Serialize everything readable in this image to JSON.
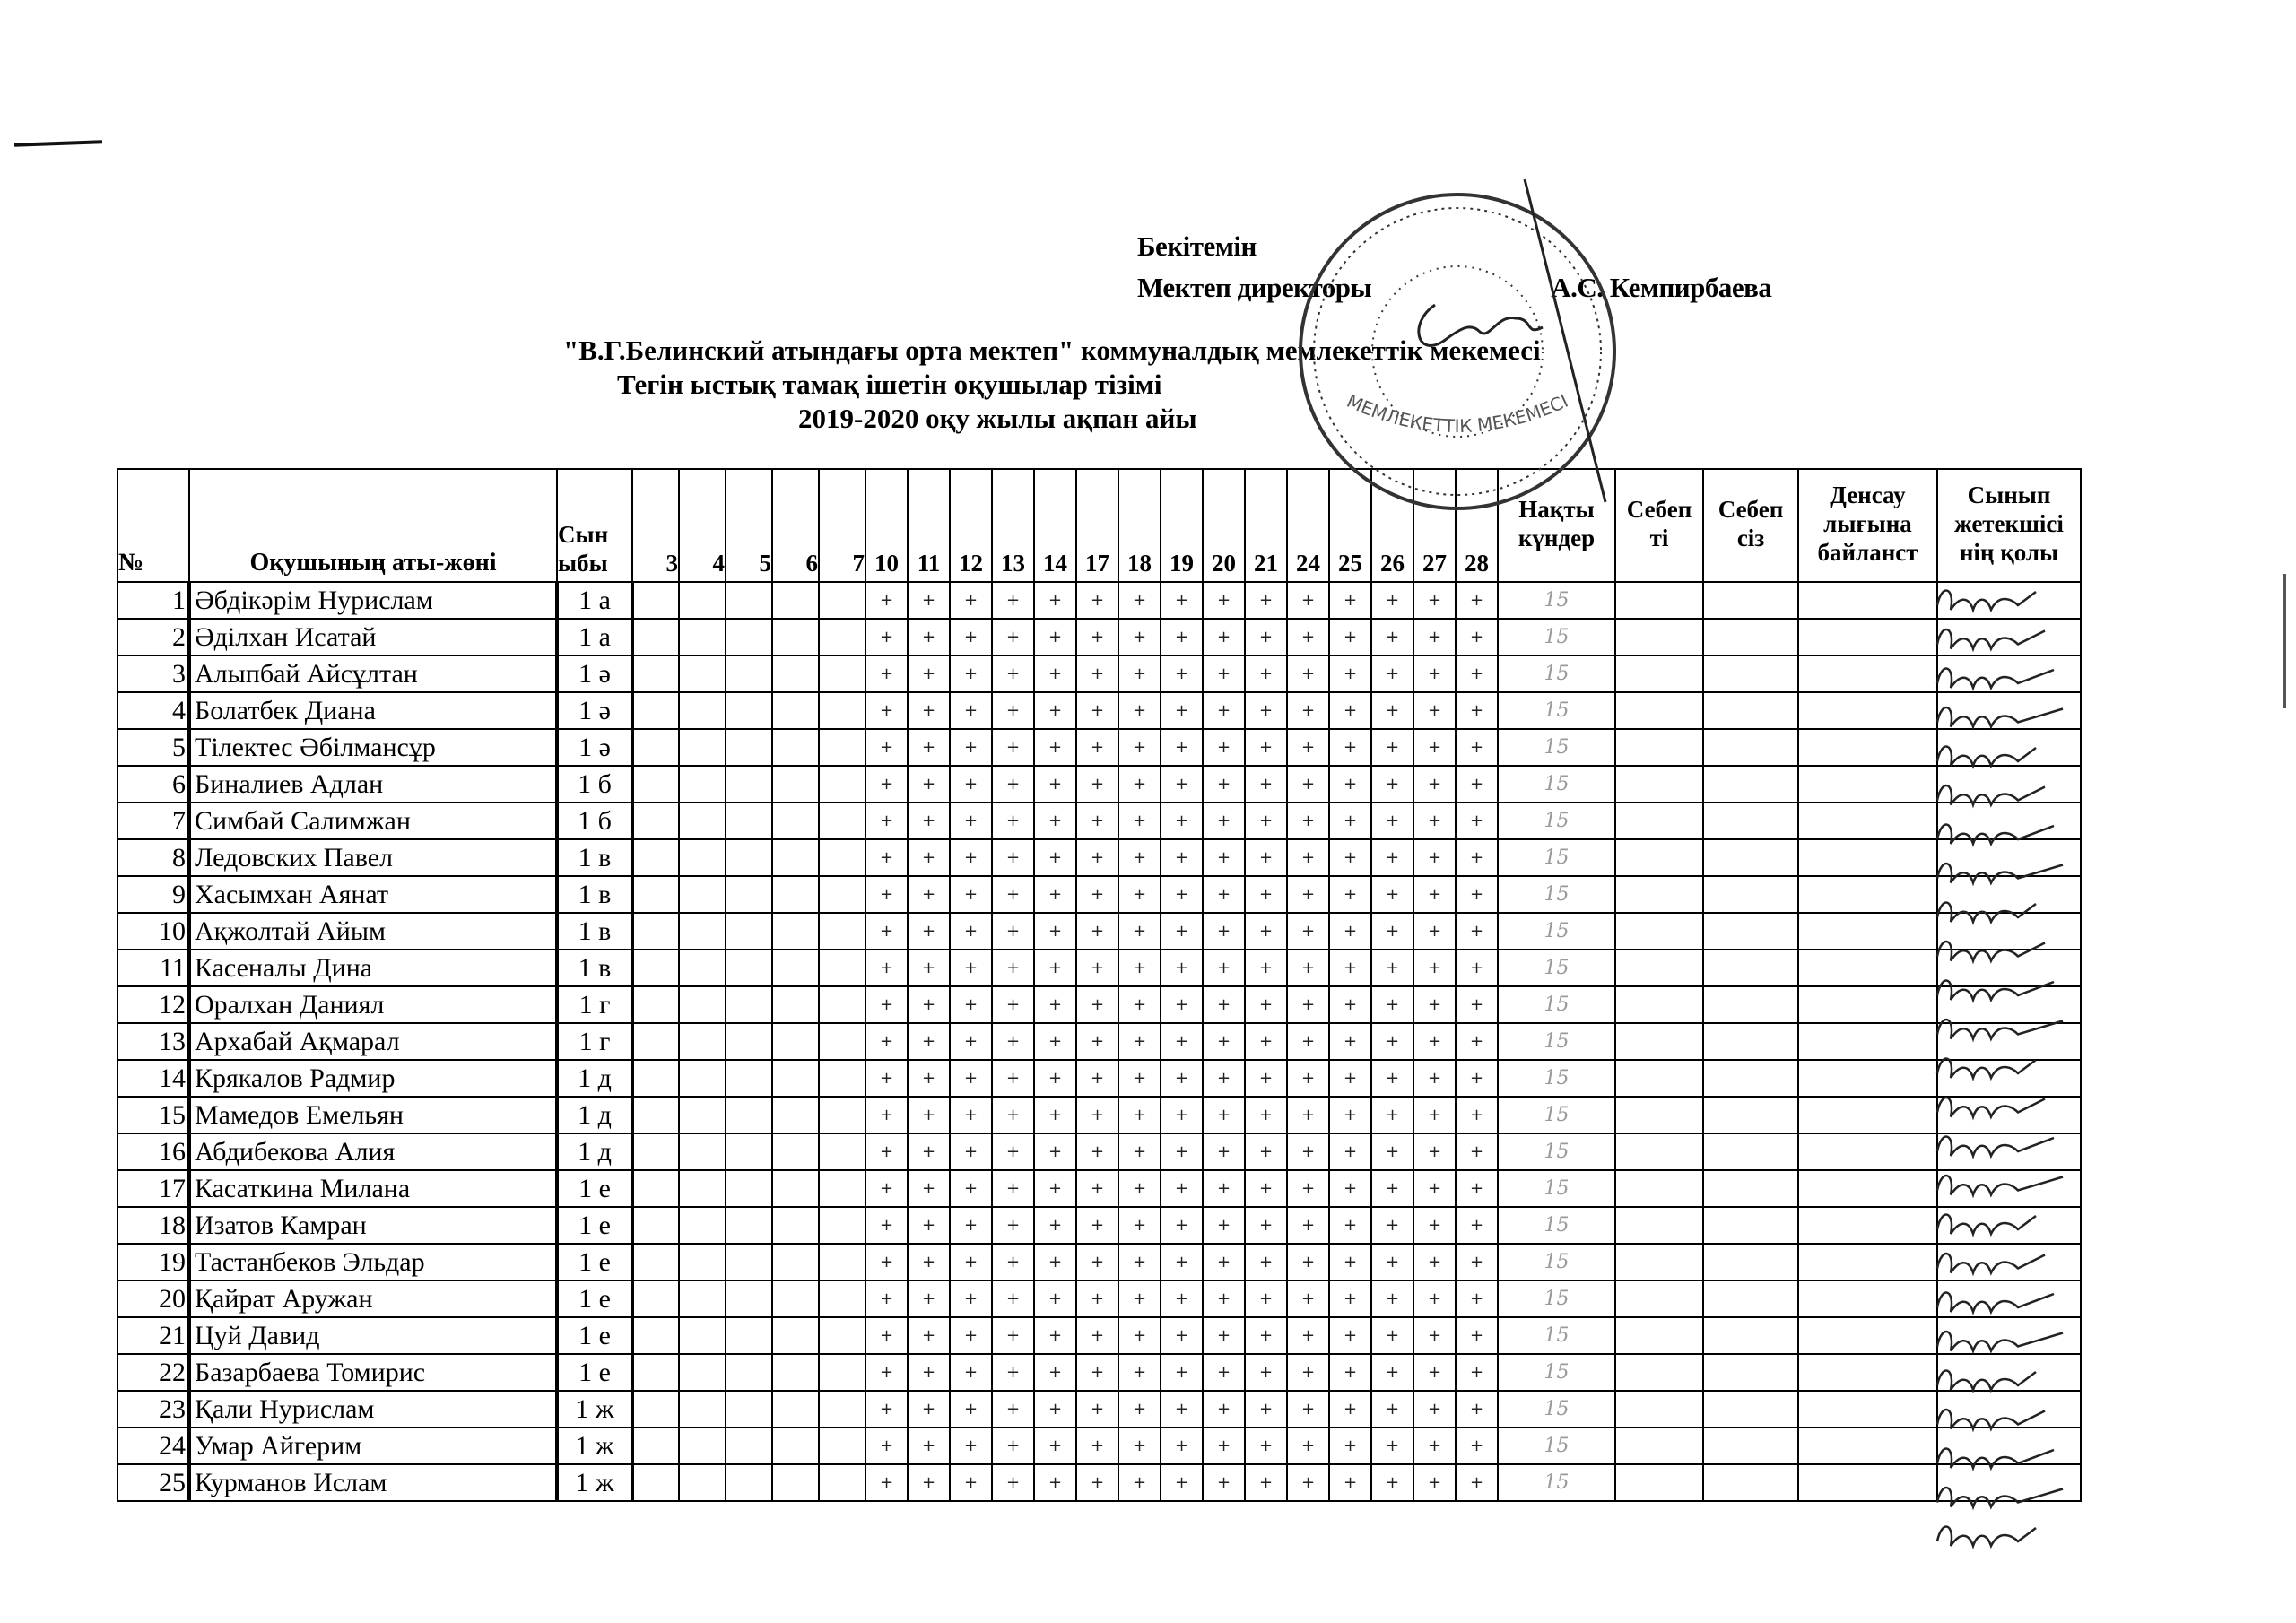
{
  "approval": {
    "line1": "Бекітемін",
    "line2_prefix": "Мектеп директоры",
    "line2_name": "А.С. Кемпирбаева"
  },
  "titles": {
    "institution": "\"В.Г.Белинский атындағы орта мектеп\" коммуналдық мемлекеттік мекемесі",
    "list_title": "Тегін ыстық тамақ ішетін оқушылар тізімі",
    "period": "2019-2020 оқу  жылы ақпан айы"
  },
  "table": {
    "headers": {
      "number": "№",
      "name": "Оқушының аты-жөні",
      "class": "Сын ыбы",
      "actual_days": "Нақты күндер",
      "excused": "Себеп ті",
      "unexcused": "Себеп сіз",
      "health": "Денсау лығына байланст",
      "teacher_signature": "Сынып жетекшісі нің қолы"
    },
    "days": [
      "3",
      "4",
      "5",
      "6",
      "7",
      "10",
      "11",
      "12",
      "13",
      "14",
      "17",
      "18",
      "19",
      "20",
      "21",
      "24",
      "25",
      "26",
      "27",
      "28"
    ],
    "marked_days": [
      "10",
      "11",
      "12",
      "13",
      "14",
      "17",
      "18",
      "19",
      "20",
      "21",
      "24",
      "25",
      "26",
      "27",
      "28"
    ],
    "mark_symbol": "+",
    "rows": [
      {
        "n": "1",
        "name": "Әбдікәрім Нурислам",
        "class": "1 а",
        "actual": "15"
      },
      {
        "n": "2",
        "name": "Әділхан Исатай",
        "class": "1 а",
        "actual": "15"
      },
      {
        "n": "3",
        "name": "Алыпбай Айсұлтан",
        "class": "1 ә",
        "actual": "15"
      },
      {
        "n": "4",
        "name": "Болатбек Диана",
        "class": "1 ә",
        "actual": "15"
      },
      {
        "n": "5",
        "name": "Тілектес Әбілмансұр",
        "class": "1 ә",
        "actual": "15"
      },
      {
        "n": "6",
        "name": "Биналиев Адлан",
        "class": "1 б",
        "actual": "15"
      },
      {
        "n": "7",
        "name": "Симбай Салимжан",
        "class": "1 б",
        "actual": "15"
      },
      {
        "n": "8",
        "name": "Ледовских Павел",
        "class": "1 в",
        "actual": "15"
      },
      {
        "n": "9",
        "name": "Хасымхан Аянат",
        "class": "1 в",
        "actual": "15"
      },
      {
        "n": "10",
        "name": "Ақжолтай Айым",
        "class": "1 в",
        "actual": "15"
      },
      {
        "n": "11",
        "name": "Касеналы Дина",
        "class": "1 в",
        "actual": "15"
      },
      {
        "n": "12",
        "name": "Оралхан Даниял",
        "class": "1 г",
        "actual": "15"
      },
      {
        "n": "13",
        "name": "Архабай Ақмарал",
        "class": "1 г",
        "actual": "15"
      },
      {
        "n": "14",
        "name": "Крякалов Радмир",
        "class": "1 д",
        "actual": "15"
      },
      {
        "n": "15",
        "name": "Мамедов Емельян",
        "class": "1 д",
        "actual": "15"
      },
      {
        "n": "16",
        "name": "Абдибекова Алия",
        "class": "1 д",
        "actual": "15"
      },
      {
        "n": "17",
        "name": "Касаткина Милана",
        "class": "1 е",
        "actual": "15"
      },
      {
        "n": "18",
        "name": "Изатов Камран",
        "class": "1 е",
        "actual": "15"
      },
      {
        "n": "19",
        "name": "Тастанбеков Эльдар",
        "class": "1 е",
        "actual": "15"
      },
      {
        "n": "20",
        "name": "Қайрат Аружан",
        "class": "1 е",
        "actual": "15"
      },
      {
        "n": "21",
        "name": "Цуй Давид",
        "class": "1 е",
        "actual": "15"
      },
      {
        "n": "22",
        "name": "Базарбаева Томирис",
        "class": "1 е",
        "actual": "15"
      },
      {
        "n": "23",
        "name": "Қали Нурислам",
        "class": "1 ж",
        "actual": "15"
      },
      {
        "n": "24",
        "name": "Умар Айгерим",
        "class": "1 ж",
        "actual": "15"
      },
      {
        "n": "25",
        "name": "Курманов Ислам",
        "class": "1 ж",
        "actual": "15"
      }
    ]
  },
  "stamp": {
    "text": "МЕМЛЕКЕТТІК МЕКЕМЕСІ"
  }
}
